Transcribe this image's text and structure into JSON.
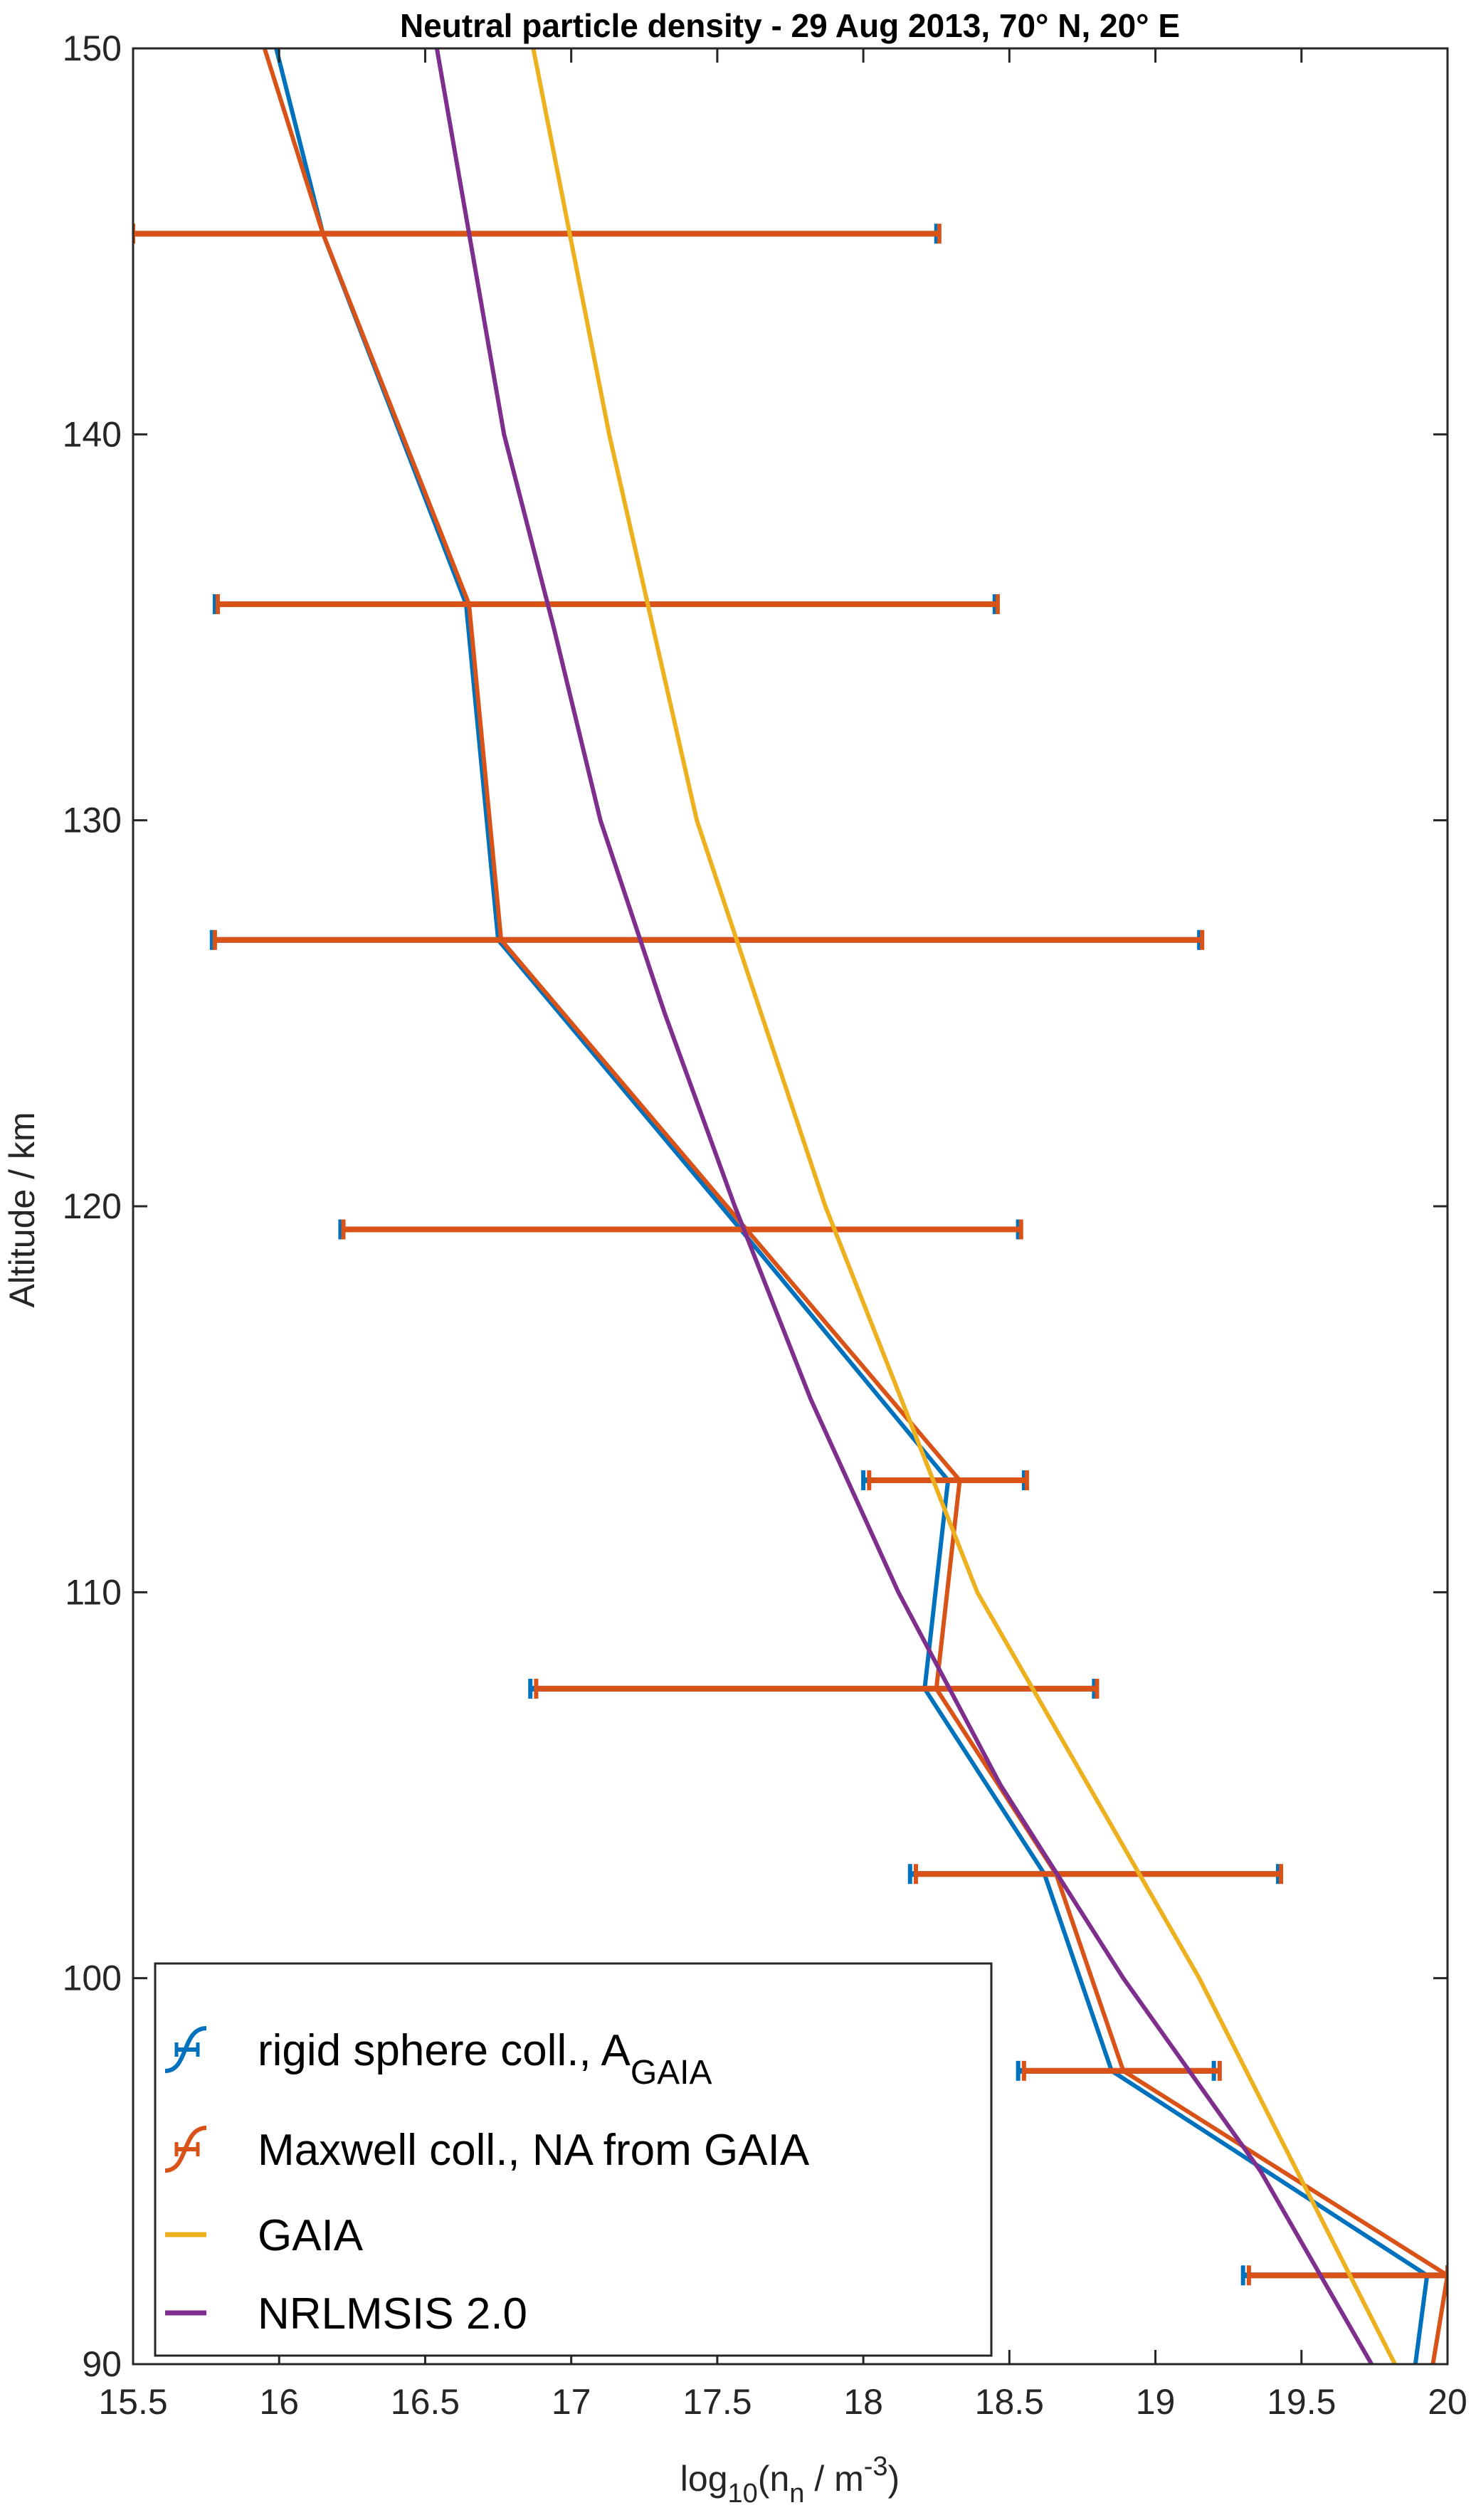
{
  "chart_data": {
    "type": "line",
    "title": "Neutral particle density - 29 Aug 2013, 70° N, 20° E",
    "xlabel": {
      "base": "log",
      "sub1": "10",
      "mid": "(n",
      "sub2": "n",
      "mid2": " / m",
      "sup": "-3",
      "end": ")"
    },
    "ylabel": "Altitude / km",
    "xlim": [
      15.5,
      20
    ],
    "ylim": [
      90,
      150
    ],
    "xticks": [
      "15.5",
      "16",
      "16.5",
      "17",
      "17.5",
      "18",
      "18.5",
      "19",
      "19.5",
      "20"
    ],
    "yticks": [
      "90",
      "100",
      "110",
      "120",
      "130",
      "140",
      "150"
    ],
    "grid": false,
    "legend_position": "bottom-left",
    "series": [
      {
        "name": "rigid sphere coll., A",
        "name_sub": "GAIA",
        "color": "#0072BD",
        "errorbar": true,
        "points": [
          [
            15.99,
            150
          ],
          [
            16.15,
            145.2
          ],
          [
            16.64,
            135.6
          ],
          [
            16.75,
            126.9
          ],
          [
            17.58,
            119.4
          ],
          [
            18.29,
            112.9
          ],
          [
            18.21,
            107.5
          ],
          [
            18.62,
            102.7
          ],
          [
            18.85,
            97.6
          ],
          [
            19.93,
            92.3
          ],
          [
            19.89,
            90
          ]
        ],
        "errors": [
          [
            145.2,
            15.5,
            18.25
          ],
          [
            135.6,
            15.78,
            18.45
          ],
          [
            126.9,
            15.77,
            19.15
          ],
          [
            119.4,
            16.21,
            18.53
          ],
          [
            112.9,
            18.0,
            18.55
          ],
          [
            107.5,
            16.86,
            18.79
          ],
          [
            102.7,
            18.16,
            19.42
          ],
          [
            97.6,
            18.53,
            19.2
          ],
          [
            92.3,
            19.3,
            20.0
          ]
        ]
      },
      {
        "name": "Maxwell coll., NA from GAIA",
        "color": "#D95319",
        "errorbar": true,
        "points": [
          [
            15.95,
            150
          ],
          [
            16.15,
            145.2
          ],
          [
            16.65,
            135.6
          ],
          [
            16.76,
            126.9
          ],
          [
            17.6,
            119.4
          ],
          [
            18.33,
            112.9
          ],
          [
            18.25,
            107.5
          ],
          [
            18.66,
            102.7
          ],
          [
            18.89,
            97.6
          ],
          [
            20.0,
            92.3
          ],
          [
            19.95,
            90
          ]
        ],
        "errors": [
          [
            145.2,
            15.5,
            18.26
          ],
          [
            135.6,
            15.79,
            18.46
          ],
          [
            126.9,
            15.78,
            19.16
          ],
          [
            119.4,
            16.22,
            18.54
          ],
          [
            112.9,
            18.02,
            18.56
          ],
          [
            107.5,
            16.88,
            18.8
          ],
          [
            102.7,
            18.18,
            19.43
          ],
          [
            97.6,
            18.55,
            19.22
          ],
          [
            92.3,
            19.32,
            20.0
          ]
        ]
      },
      {
        "name": "GAIA",
        "color": "#EDB120",
        "errorbar": false,
        "points": [
          [
            16.87,
            150
          ],
          [
            17.13,
            140
          ],
          [
            17.43,
            130
          ],
          [
            17.87,
            120
          ],
          [
            18.39,
            110
          ],
          [
            19.15,
            100
          ],
          [
            19.82,
            90
          ]
        ]
      },
      {
        "name": "NRLMSIS 2.0",
        "color": "#7E2F8E",
        "errorbar": false,
        "points": [
          [
            16.54,
            150
          ],
          [
            16.77,
            140
          ],
          [
            16.94,
            135
          ],
          [
            17.1,
            130
          ],
          [
            17.32,
            125
          ],
          [
            17.56,
            120
          ],
          [
            17.82,
            115
          ],
          [
            18.12,
            110
          ],
          [
            18.47,
            105
          ],
          [
            18.89,
            100
          ],
          [
            19.36,
            95
          ],
          [
            19.74,
            90
          ]
        ]
      }
    ]
  }
}
